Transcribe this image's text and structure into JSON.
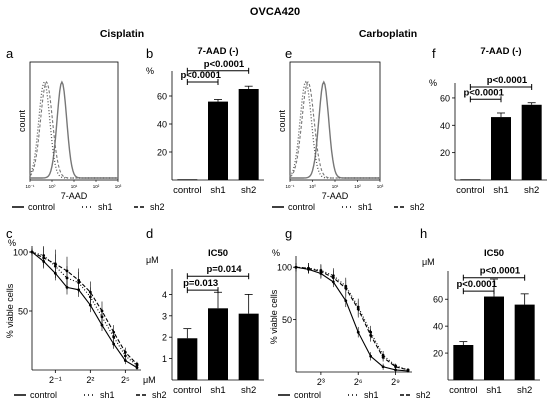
{
  "figure_title": "OVCA420",
  "group_titles": {
    "cisplatin": "Cisplatin",
    "carboplatin": "Carboplatin"
  },
  "panel_letters": [
    "a",
    "b",
    "c",
    "d",
    "e",
    "f",
    "g",
    "h"
  ],
  "colors": {
    "bar": "#000000",
    "curve": "#000000",
    "control_hist": "#777777",
    "sh_hist": "#999999"
  },
  "legend": [
    "control",
    "sh1",
    "sh2"
  ],
  "chart_data": [
    {
      "panel": "a",
      "type": "histogram-overlay",
      "ylabel": "count",
      "xlabel": "7-AAD",
      "xlim_log10": [
        -1,
        3
      ],
      "series": [
        {
          "name": "control",
          "style": "solid-grey",
          "peak_log10": 0.45,
          "sd": 0.22
        },
        {
          "name": "sh1",
          "style": "dotted",
          "peak_log10": -0.35,
          "sd": 0.25
        },
        {
          "name": "sh2",
          "style": "dashed",
          "peak_log10": -0.25,
          "sd": 0.27
        }
      ]
    },
    {
      "panel": "b",
      "type": "bar",
      "title": "7-AAD (-)",
      "yunit": "%",
      "categories": [
        "control",
        "sh1",
        "sh2"
      ],
      "values": [
        0.5,
        56,
        65
      ],
      "errors": [
        0,
        1.5,
        2
      ],
      "ylim": [
        0,
        75
      ],
      "yticks": [
        20,
        40,
        60
      ],
      "annotations": [
        {
          "text": "p<0.0001",
          "from": 0,
          "to": 1,
          "y": 70
        },
        {
          "text": "p<0.0001",
          "from": 0,
          "to": 2,
          "y": 78
        }
      ]
    },
    {
      "panel": "c",
      "type": "line",
      "ylabel": "% viable cells",
      "yunit": "%",
      "xunit": "μM",
      "x_log2": [
        -3,
        -2,
        -1,
        0,
        1,
        2,
        3,
        4,
        5,
        6
      ],
      "xticks": [
        {
          "label": "2⁻¹",
          "x": -1
        },
        {
          "label": "2²",
          "x": 2
        },
        {
          "label": "2⁵",
          "x": 5
        }
      ],
      "ylim": [
        0,
        100
      ],
      "yticks": [
        50,
        100
      ],
      "series": [
        {
          "name": "control",
          "dash": "",
          "values": [
            100,
            92,
            82,
            70,
            68,
            55,
            38,
            22,
            8,
            2
          ],
          "errors": [
            3,
            5,
            6,
            6,
            6,
            6,
            5,
            4,
            3,
            2
          ]
        },
        {
          "name": "sh1",
          "dash": "1,2",
          "values": [
            100,
            97,
            88,
            78,
            74,
            62,
            45,
            28,
            12,
            4
          ],
          "errors": [
            3,
            8,
            10,
            10,
            9,
            8,
            7,
            6,
            4,
            2
          ]
        },
        {
          "name": "sh2",
          "dash": "4,2",
          "values": [
            100,
            95,
            90,
            84,
            76,
            66,
            50,
            32,
            15,
            5
          ],
          "errors": [
            3,
            9,
            12,
            12,
            10,
            9,
            8,
            6,
            4,
            2
          ]
        }
      ]
    },
    {
      "panel": "d",
      "type": "bar",
      "title": "IC50",
      "yunit": "μM",
      "categories": [
        "control",
        "sh1",
        "sh2"
      ],
      "values": [
        1.95,
        3.35,
        3.1
      ],
      "errors": [
        0.45,
        0.75,
        0.9
      ],
      "ylim": [
        0,
        5
      ],
      "yticks": [
        1,
        2,
        3,
        4
      ],
      "annotations": [
        {
          "text": "p=0.013",
          "from": 0,
          "to": 1,
          "y": 4.2
        },
        {
          "text": "p=0.014",
          "from": 0,
          "to": 2,
          "y": 4.85
        }
      ]
    },
    {
      "panel": "e",
      "type": "histogram-overlay",
      "ylabel": "count",
      "xlabel": "7-AAD",
      "xlim_log10": [
        -1,
        3
      ],
      "series": [
        {
          "name": "control",
          "style": "solid-grey",
          "peak_log10": 0.5,
          "sd": 0.22
        },
        {
          "name": "sh1",
          "style": "dotted",
          "peak_log10": -0.3,
          "sd": 0.25
        },
        {
          "name": "sh2",
          "style": "dashed",
          "peak_log10": -0.2,
          "sd": 0.27
        }
      ]
    },
    {
      "panel": "f",
      "type": "bar",
      "title": "7-AAD (-)",
      "yunit": "%",
      "categories": [
        "control",
        "sh1",
        "sh2"
      ],
      "values": [
        0.5,
        46,
        55
      ],
      "errors": [
        0,
        3,
        1.5
      ],
      "ylim": [
        0,
        68
      ],
      "yticks": [
        20,
        40,
        60
      ],
      "annotations": [
        {
          "text": "p<0.0001",
          "from": 0,
          "to": 1,
          "y": 59
        },
        {
          "text": "p<0.0001",
          "from": 0,
          "to": 2,
          "y": 68
        }
      ]
    },
    {
      "panel": "g",
      "type": "line",
      "ylabel": "% viable cells",
      "yunit": "%",
      "x_log2": [
        1,
        2,
        3,
        4,
        5,
        6,
        7,
        8,
        9,
        10
      ],
      "xticks": [
        {
          "label": "2³",
          "x": 3
        },
        {
          "label": "2⁶",
          "x": 6
        },
        {
          "label": "2⁹",
          "x": 9
        }
      ],
      "ylim": [
        0,
        105
      ],
      "yticks": [
        50,
        100
      ],
      "series": [
        {
          "name": "control",
          "dash": "",
          "values": [
            100,
            98,
            94,
            86,
            68,
            38,
            15,
            5,
            2,
            1
          ],
          "errors": [
            4,
            4,
            5,
            5,
            6,
            5,
            4,
            3,
            2,
            1
          ]
        },
        {
          "name": "sh1",
          "dash": "1,2",
          "values": [
            100,
            99,
            97,
            92,
            82,
            62,
            38,
            16,
            6,
            2
          ],
          "errors": [
            4,
            5,
            6,
            7,
            8,
            8,
            6,
            4,
            2,
            1
          ]
        },
        {
          "name": "sh2",
          "dash": "4,2",
          "values": [
            100,
            99,
            96,
            90,
            80,
            60,
            35,
            14,
            5,
            2
          ],
          "errors": [
            4,
            5,
            6,
            7,
            8,
            8,
            6,
            4,
            2,
            1
          ]
        }
      ]
    },
    {
      "panel": "h",
      "type": "bar",
      "title": "IC50",
      "yunit": "μM",
      "categories": [
        "control",
        "sh1",
        "sh2"
      ],
      "values": [
        26,
        62,
        56
      ],
      "errors": [
        2.5,
        13,
        8
      ],
      "ylim": [
        0,
        78
      ],
      "yticks": [
        20,
        40,
        60
      ],
      "annotations": [
        {
          "text": "p<0.0001",
          "from": 0,
          "to": 1,
          "y": 66
        },
        {
          "text": "p<0.0001",
          "from": 0,
          "to": 2,
          "y": 76
        }
      ]
    }
  ]
}
